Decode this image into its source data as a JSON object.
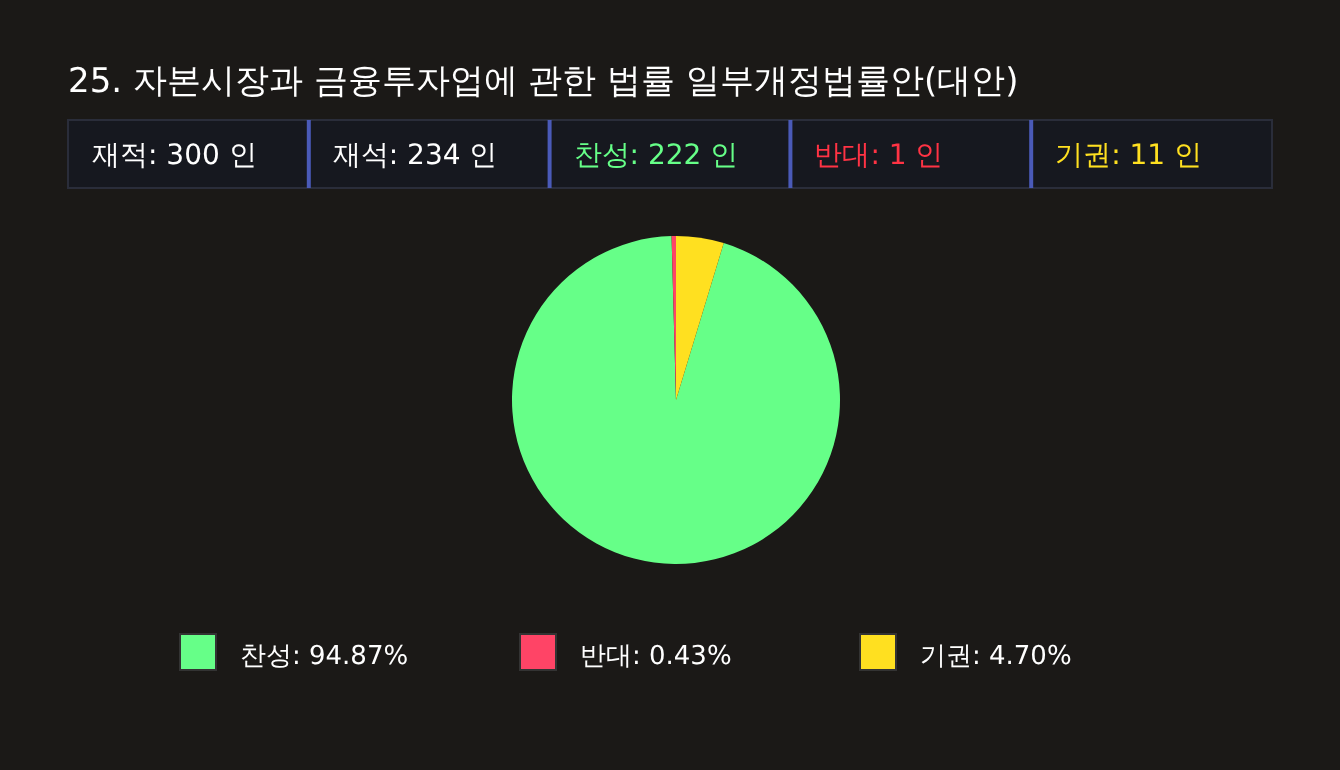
{
  "chart_data": [
    {
      "type": "other",
      "title": "25. 자본시장과 금융투자업에 관한 법률 일부개정법률안(대안)",
      "annotations": [
        "재적: 300 인",
        "재석: 234 인",
        "찬성: 222 인",
        "반대:  1 인",
        "기권:  11 인"
      ]
    },
    {
      "type": "pie",
      "categories": [
        "찬성",
        "반대",
        "기권"
      ],
      "values": [
        94.87,
        0.43,
        4.7
      ],
      "colors": [
        "#66ff88",
        "#ff4466",
        "#ffe020"
      ],
      "value_labels": [
        "94.87%",
        "0.43%",
        "4.70%"
      ],
      "legend": "bottom"
    }
  ]
}
